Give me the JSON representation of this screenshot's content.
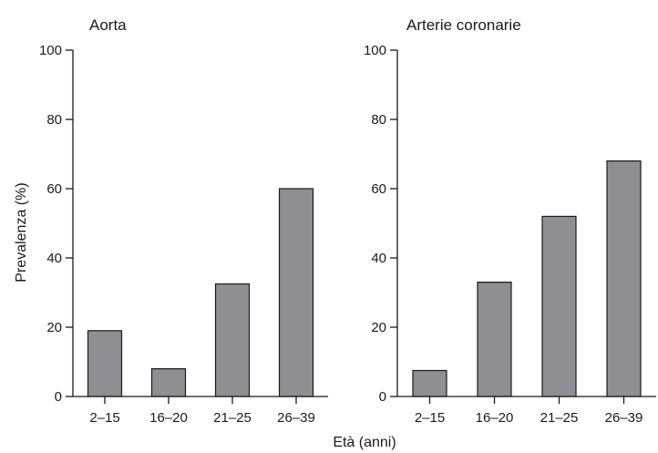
{
  "chart_data": [
    {
      "type": "bar",
      "title": "Aorta",
      "categories": [
        "2–15",
        "16–20",
        "21–25",
        "26–39"
      ],
      "values": [
        19,
        8,
        32.5,
        60
      ],
      "ylabel": "Prevalenza (%)",
      "ylim": [
        0,
        100
      ],
      "yticks": [
        0,
        20,
        40,
        60,
        80,
        100
      ],
      "grid": false,
      "legend": "none",
      "bar_color": "#8e8e93"
    },
    {
      "type": "bar",
      "title": "Arterie coronarie",
      "categories": [
        "2–15",
        "16–20",
        "21–25",
        "26–39"
      ],
      "values": [
        7.5,
        33,
        52,
        68
      ],
      "ylabel": "",
      "ylim": [
        0,
        100
      ],
      "yticks": [
        0,
        20,
        40,
        60,
        80,
        100
      ],
      "grid": false,
      "legend": "none",
      "bar_color": "#8e8e93"
    }
  ],
  "shared_xlabel": "Età (anni)"
}
